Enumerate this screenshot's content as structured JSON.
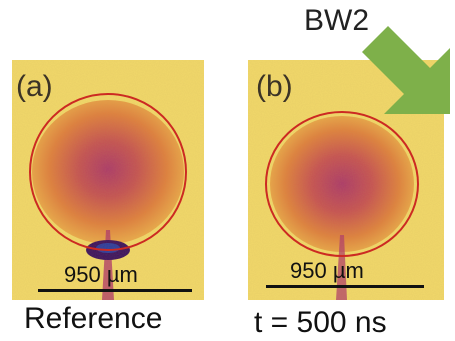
{
  "panels": [
    {
      "letter": "(a)",
      "scale_label": "950 µm",
      "caption": "Reference"
    },
    {
      "letter": "(b)",
      "scale_label": "950 µm",
      "caption": "t = 500 ns"
    }
  ],
  "arrow_label": "BW2",
  "colors": {
    "background_yellow": "#f2d96a",
    "blob_orange": "#d8663a",
    "blob_core": "#a8306a",
    "circle_outline": "#cc2a22",
    "jet_dark": "#3a1060",
    "arrow_green": "#7eb04a"
  },
  "icons": {
    "arrow": "green-arrow-icon"
  }
}
